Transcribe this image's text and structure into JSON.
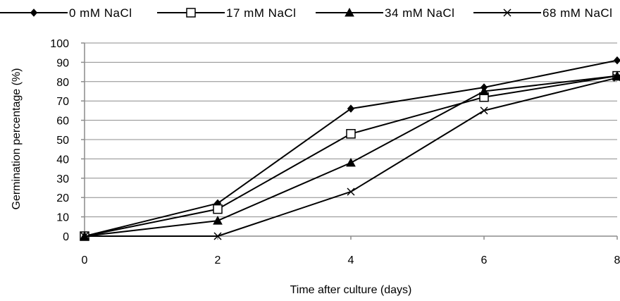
{
  "chart_data": {
    "type": "line",
    "title": "",
    "xlabel": "Time after culture (days)",
    "ylabel": "Germination percentage (%)",
    "x": [
      0,
      2,
      4,
      6,
      8
    ],
    "xlim": [
      0,
      8
    ],
    "ylim": [
      0,
      100
    ],
    "yticks": [
      0,
      10,
      20,
      30,
      40,
      50,
      60,
      70,
      80,
      90,
      100
    ],
    "xticks": [
      0,
      2,
      4,
      6,
      8
    ],
    "grid": "horizontal",
    "legend_position": "top",
    "colors": {
      "line": "#000000",
      "grid": "#8c8c8c",
      "axis": "#8c8c8c"
    },
    "series": [
      {
        "name": "0 mM NaCl",
        "marker": "diamond",
        "values": [
          0,
          17,
          66,
          77,
          91
        ]
      },
      {
        "name": "17 mM NaCl",
        "marker": "hollow-square",
        "values": [
          0,
          14,
          53,
          72,
          83
        ]
      },
      {
        "name": "34 mM NaCl",
        "marker": "filled-triangle",
        "values": [
          0,
          8,
          38,
          75,
          83
        ]
      },
      {
        "name": "68 mM NaCl",
        "marker": "x",
        "values": [
          0,
          0,
          23,
          65,
          82
        ]
      }
    ]
  }
}
